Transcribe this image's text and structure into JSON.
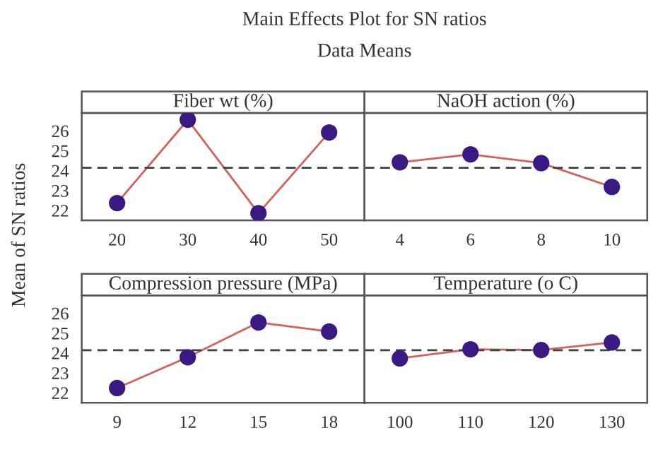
{
  "chart_data": [
    {
      "type": "line",
      "title": "Fiber wt (%)",
      "ylabel": "Mean of SN ratios",
      "annotations": [
        "Main Effects Plot for SN ratios",
        "Data Means"
      ],
      "categories": [
        "20",
        "30",
        "40",
        "50"
      ],
      "series": [
        {
          "color": "#d2625a",
          "colors": [
            "#3a1a82",
            "#3a1a82",
            "#3a1a82",
            "#3a1a82"
          ],
          "values": [
            22.37,
            26.56,
            21.86,
            25.92
          ]
        }
      ],
      "ylim": [
        21.5,
        26.9
      ],
      "yticks": [
        22,
        23,
        24,
        25,
        26
      ],
      "marker": "circle",
      "grid": false,
      "ref_lines": [
        {
          "axis": "y",
          "value": 24.14,
          "line_style": "dashed",
          "color": "#404040"
        }
      ]
    },
    {
      "type": "line",
      "title": "NaOH action (%)",
      "categories": [
        "4",
        "6",
        "8",
        "10"
      ],
      "series": [
        {
          "color": "#d2625a",
          "colors": [
            "#3a1a82",
            "#3a1a82",
            "#3a1a82",
            "#3a1a82"
          ],
          "values": [
            24.42,
            24.82,
            24.38,
            23.18
          ]
        }
      ],
      "ylim": [
        21.5,
        26.9
      ],
      "yticks": [
        22,
        23,
        24,
        25,
        26
      ],
      "tick_labels": "x",
      "marker": "circle",
      "grid": false,
      "ref_lines": [
        {
          "axis": "y",
          "value": 24.14,
          "line_style": "dashed",
          "color": "#404040"
        }
      ]
    },
    {
      "type": "line",
      "title": "Compression pressure (MPa)",
      "categories": [
        "9",
        "12",
        "15",
        "18"
      ],
      "series": [
        {
          "color": "#d2625a",
          "colors": [
            "#3a1a82",
            "#3a1a82",
            "#3a1a82",
            "#3a1a82"
          ],
          "values": [
            22.24,
            23.79,
            25.54,
            25.08
          ]
        }
      ],
      "ylim": [
        21.5,
        26.9
      ],
      "yticks": [
        22,
        23,
        24,
        25,
        26
      ],
      "marker": "circle",
      "grid": false,
      "ref_lines": [
        {
          "axis": "y",
          "value": 24.14,
          "line_style": "dashed",
          "color": "#404040"
        }
      ]
    },
    {
      "type": "line",
      "title": "Temperature (o C)",
      "categories": [
        "100",
        "110",
        "120",
        "130"
      ],
      "series": [
        {
          "color": "#d2625a",
          "colors": [
            "#3a1a82",
            "#3a1a82",
            "#3a1a82",
            "#3a1a82"
          ],
          "values": [
            23.73,
            24.19,
            24.15,
            24.53
          ]
        }
      ],
      "ylim": [
        21.5,
        26.9
      ],
      "yticks": [
        22,
        23,
        24,
        25,
        26
      ],
      "tick_labels": "x",
      "marker": "circle",
      "grid": false,
      "ref_lines": [
        {
          "axis": "y",
          "value": 24.14,
          "line_style": "dashed",
          "color": "#404040"
        }
      ]
    }
  ]
}
